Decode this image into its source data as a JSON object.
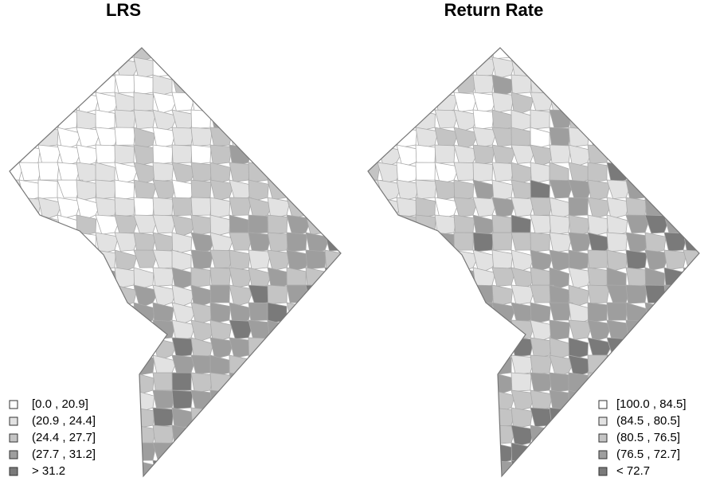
{
  "maps": [
    {
      "title": "LRS",
      "legend": [
        {
          "label": "[0.0 , 20.9]",
          "color": "#ffffff"
        },
        {
          "label": "(20.9 , 24.4]",
          "color": "#e2e2e2"
        },
        {
          "label": "(24.4 , 27.7]",
          "color": "#c4c4c4"
        },
        {
          "label": "(27.7 , 31.2]",
          "color": "#9e9e9e"
        },
        {
          "label": "> 31.2",
          "color": "#7a7a7a"
        }
      ]
    },
    {
      "title": "Return Rate",
      "legend": [
        {
          "label": "[100.0 , 84.5]",
          "color": "#ffffff"
        },
        {
          "label": "(84.5 , 80.5]",
          "color": "#e2e2e2"
        },
        {
          "label": "(80.5 , 76.5]",
          "color": "#c4c4c4"
        },
        {
          "label": "(76.5 , 72.7]",
          "color": "#9e9e9e"
        },
        {
          "label": "< 72.7",
          "color": "#7a7a7a"
        }
      ]
    }
  ]
}
